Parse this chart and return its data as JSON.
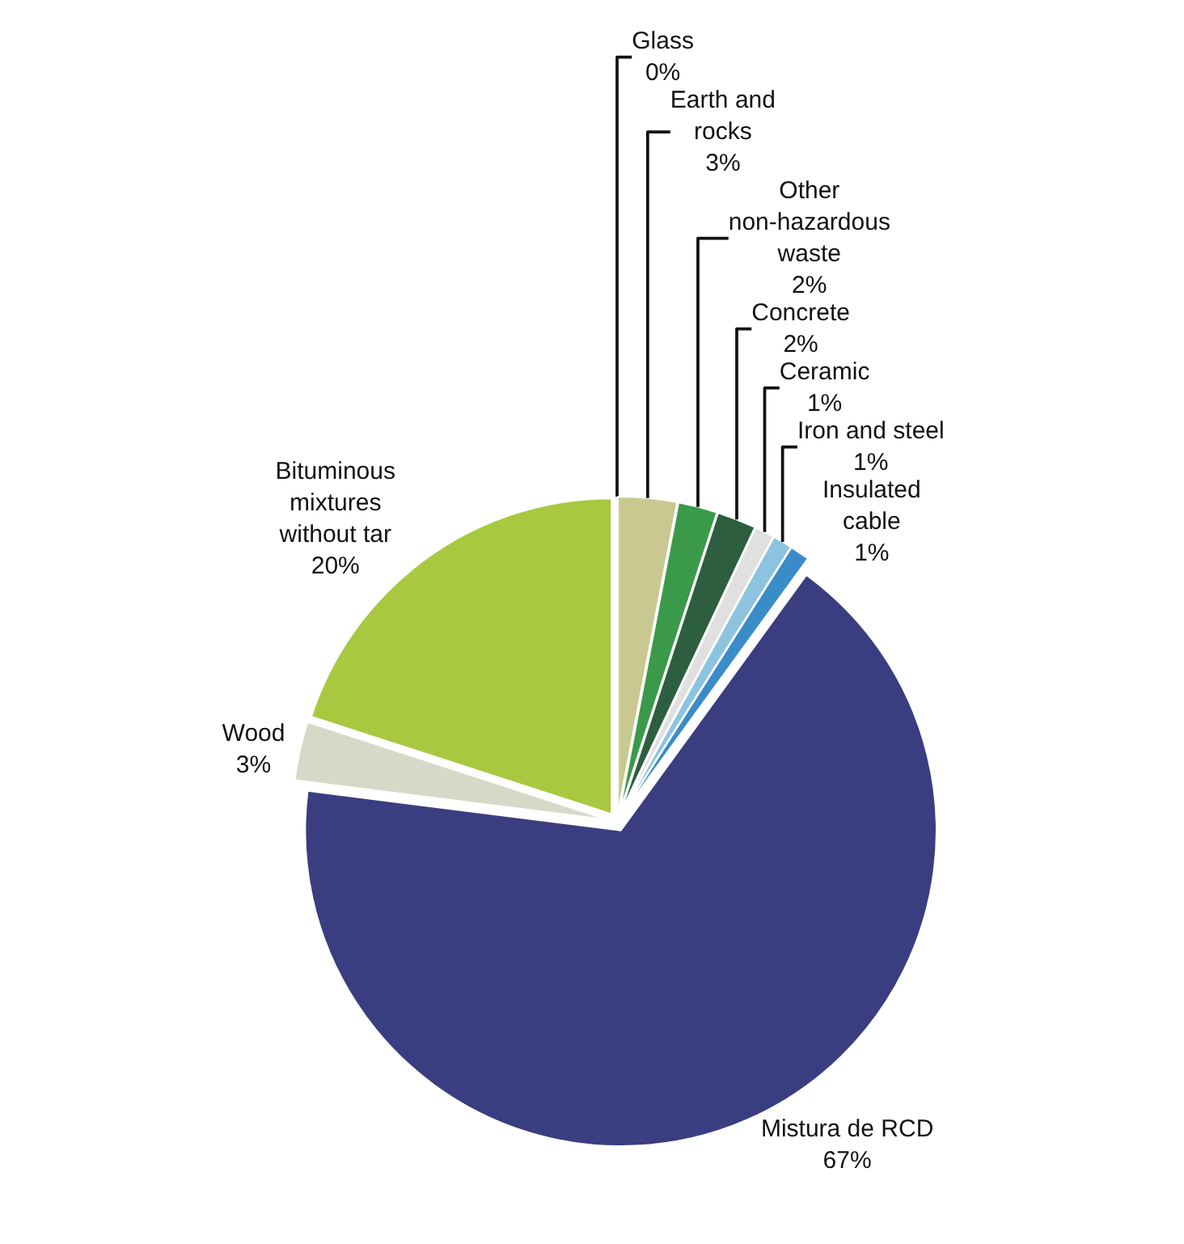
{
  "chart_data": {
    "type": "pie",
    "categories": [
      "Glass",
      "Earth and rocks",
      "Other non-hazardous waste",
      "Concrete",
      "Ceramic",
      "Iron and steel",
      "Insulated cable",
      "Mistura de RCD",
      "Wood",
      "Bituminous mixtures without tar"
    ],
    "values": [
      0,
      3,
      2,
      2,
      1,
      1,
      1,
      67,
      3,
      20
    ],
    "value_labels": [
      "0%",
      "3%",
      "2%",
      "2%",
      "1%",
      "1%",
      "1%",
      "67%",
      "3%",
      "20%"
    ],
    "colors": [
      "#e8e8e0",
      "#c8c890",
      "#3a9a4a",
      "#2e5e40",
      "#e0e0e0",
      "#8cc4e0",
      "#3a8cc8",
      "#3a3d80",
      "#d8d8c8",
      "#a8c840"
    ],
    "legend": false
  }
}
